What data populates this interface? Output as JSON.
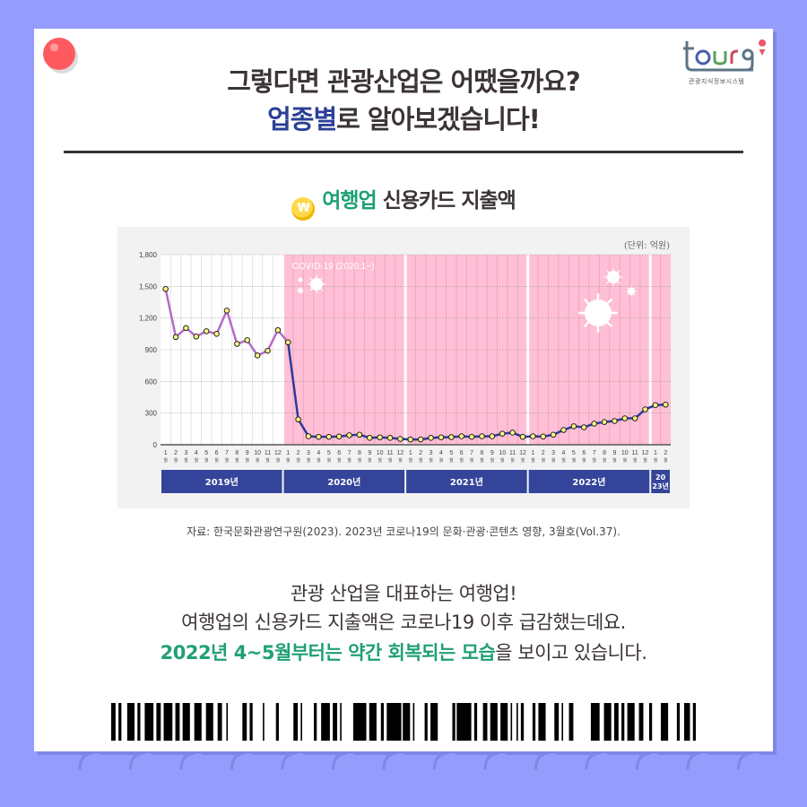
{
  "logo": {
    "text": "tour9",
    "subtitle": "관광지식정보시스템"
  },
  "header": {
    "title_line1": "그렇다면 관광산업은 어땠을까요?",
    "title_line2_highlight": "업종별",
    "title_line2_rest": "로 알아보겠습니다!"
  },
  "section": {
    "coin_symbol": "₩",
    "title_highlight": "여행업",
    "title_rest": " 신용카드 지출액"
  },
  "chart_labels": {
    "unit": "(단위: 억원)",
    "covid_label": "COVID-19 (2020.1~)",
    "month_suffix": "월"
  },
  "source": "자료: 한국문화관광연구원(2023). 2023년 코로나19의 문화·관광·콘텐츠 영향, 3월호(Vol.37).",
  "body": {
    "line1": "관광 산업을 대표하는 여행업!",
    "line2": "여행업의 신용카드 지출액은 코로나19 이후 급감했는데요.",
    "line3_highlight": "2022년 4~5월부터는 약간 회복되는 모습",
    "line3_rest": "을 보이고 있습니다."
  },
  "colors": {
    "background": "#959cfb",
    "pre_covid_line": "#b36cc8",
    "covid_line": "#2b3a9a",
    "covid_shade": "#ffbfd6",
    "year_band": "#34449a",
    "marker_fill": "#fff685",
    "green_accent": "#1fa074",
    "blue_accent": "#2b3f96"
  },
  "chart_data": {
    "type": "line",
    "title": "여행업 신용카드 지출액",
    "xlabel": "",
    "ylabel": "(단위: 억원)",
    "ylim": [
      0,
      1800
    ],
    "yticks": [
      0,
      300,
      600,
      900,
      1200,
      1500,
      1800
    ],
    "ytick_labels": [
      "0",
      "300",
      "600",
      "900",
      "1,200",
      "1,500",
      "1,800"
    ],
    "grid": true,
    "legend": "none",
    "annotation": "COVID-19 (2020.1~)",
    "year_groups": [
      {
        "label": "2019년",
        "months": 12
      },
      {
        "label": "2020년",
        "months": 12
      },
      {
        "label": "2021년",
        "months": 12
      },
      {
        "label": "2022년",
        "months": 12
      },
      {
        "label": "2023년",
        "months": 2
      }
    ],
    "categories": [
      "2019-1",
      "2019-2",
      "2019-3",
      "2019-4",
      "2019-5",
      "2019-6",
      "2019-7",
      "2019-8",
      "2019-9",
      "2019-10",
      "2019-11",
      "2019-12",
      "2020-1",
      "2020-2",
      "2020-3",
      "2020-4",
      "2020-5",
      "2020-6",
      "2020-7",
      "2020-8",
      "2020-9",
      "2020-10",
      "2020-11",
      "2020-12",
      "2021-1",
      "2021-2",
      "2021-3",
      "2021-4",
      "2021-5",
      "2021-6",
      "2021-7",
      "2021-8",
      "2021-9",
      "2021-10",
      "2021-11",
      "2021-12",
      "2022-1",
      "2022-2",
      "2022-3",
      "2022-4",
      "2022-5",
      "2022-6",
      "2022-7",
      "2022-8",
      "2022-9",
      "2022-10",
      "2022-11",
      "2022-12",
      "2023-1",
      "2023-2"
    ],
    "series": [
      {
        "name": "여행업 신용카드 지출액",
        "values": [
          1475,
          1020,
          1105,
          1025,
          1075,
          1050,
          1270,
          955,
          990,
          845,
          890,
          1085,
          970,
          240,
          80,
          75,
          75,
          78,
          90,
          95,
          65,
          70,
          65,
          55,
          50,
          50,
          65,
          70,
          72,
          80,
          75,
          80,
          80,
          105,
          115,
          75,
          80,
          78,
          95,
          140,
          175,
          165,
          200,
          215,
          225,
          250,
          250,
          335,
          375,
          380
        ]
      }
    ]
  }
}
